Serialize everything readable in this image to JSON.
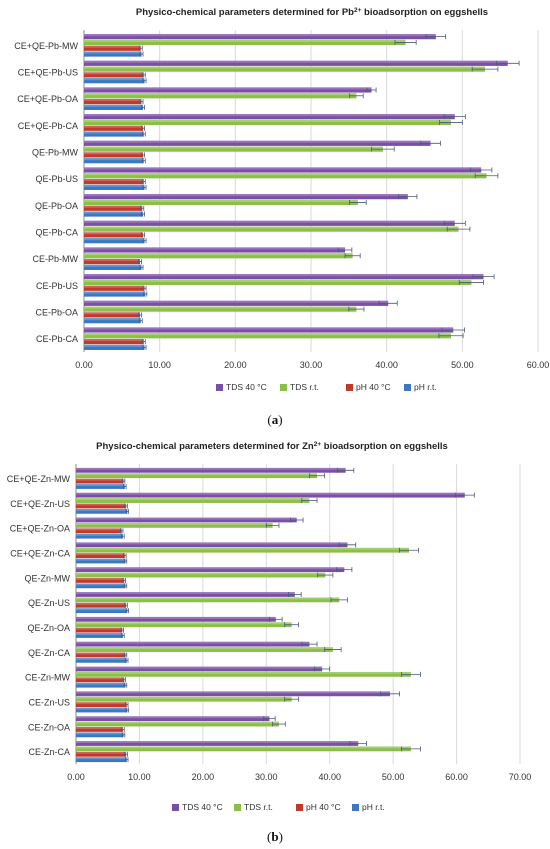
{
  "chart_data": [
    {
      "type": "bar",
      "orientation": "horizontal",
      "title": "Physico-chemical parameters determined for Pb²⁺ bioadsorption on eggshells",
      "title_parts": [
        "Physico-chemical parameters determined for Pb",
        "2+",
        " bioadsorption  on eggshells"
      ],
      "categories": [
        "CE+QE-Pb-MW",
        "CE+QE-Pb-US",
        "CE+QE-Pb-OA",
        "CE+QE-Pb-CA",
        "QE-Pb-MW",
        "QE-Pb-US",
        "QE-Pb-OA",
        "QE-Pb-CA",
        "CE-Pb-MW",
        "CE-Pb-US",
        "CE-Pb-OA",
        "CE-Pb-CA"
      ],
      "xlim": [
        0,
        60
      ],
      "xticks": [
        "0.00",
        "10.00",
        "20.00",
        "30.00",
        "40.00",
        "50.00",
        "60.00"
      ],
      "grid": true,
      "legend": "bottom",
      "error_bars": true,
      "series": [
        {
          "name": "TDS  40 °C",
          "color": "#7b4fa6",
          "values": [
            46.5,
            56.0,
            38.0,
            49.0,
            45.8,
            52.5,
            42.8,
            49.0,
            34.5,
            52.8,
            40.2,
            48.8
          ],
          "errors": [
            1.3,
            1.5,
            0.6,
            1.4,
            1.3,
            1.4,
            1.2,
            1.4,
            0.9,
            1.4,
            1.2,
            1.5
          ]
        },
        {
          "name": "TDS  r.t.",
          "color": "#8cbf4a",
          "values": [
            42.5,
            53.0,
            36.0,
            48.5,
            39.5,
            53.2,
            36.2,
            49.5,
            35.5,
            51.2,
            36.0,
            48.5
          ],
          "errors": [
            1.4,
            1.7,
            0.9,
            1.5,
            1.5,
            1.5,
            1.1,
            1.5,
            1.0,
            1.6,
            1.0,
            1.6
          ]
        },
        {
          "name": "pH 40 °C",
          "color": "#c0392b",
          "values": [
            7.5,
            7.9,
            7.6,
            7.8,
            7.8,
            7.9,
            7.7,
            7.8,
            7.4,
            8.0,
            7.4,
            7.9
          ],
          "errors": [
            0.2,
            0.2,
            0.2,
            0.2,
            0.2,
            0.2,
            0.2,
            0.2,
            0.2,
            0.2,
            0.2,
            0.2
          ]
        },
        {
          "name": "pH r.t.",
          "color": "#3a78c3",
          "values": [
            7.6,
            8.0,
            7.8,
            7.9,
            7.9,
            8.0,
            7.8,
            8.0,
            7.6,
            8.1,
            7.5,
            8.0
          ],
          "errors": [
            0.2,
            0.2,
            0.2,
            0.2,
            0.2,
            0.2,
            0.2,
            0.2,
            0.2,
            0.2,
            0.2,
            0.2
          ]
        }
      ],
      "caption": "(a)"
    },
    {
      "type": "bar",
      "orientation": "horizontal",
      "title": "Physico-chemical parameters determined for Zn²⁺ bioadsorption on eggshells",
      "title_parts": [
        "Physico-chemical parameters determined for Zn",
        "2+",
        " bioadsorption  on eggshells"
      ],
      "categories": [
        "CE+QE-Zn-MW",
        "CE+QE-Zn-US",
        "CE+QE-Zn-OA",
        "CE+QE-Zn-CA",
        "QE-Zn-MW",
        "QE-Zn-US",
        "QE-Zn-OA",
        "QE-Zn-CA",
        "CE-Zn-MW",
        "CE-Zn-US",
        "CE-Zn-OA",
        "CE-Zn-CA"
      ],
      "xlim": [
        0,
        70
      ],
      "xticks": [
        "0.00",
        "10.00",
        "20.00",
        "30.00",
        "40.00",
        "50.00",
        "60.00",
        "70.00"
      ],
      "grid": true,
      "legend": "bottom",
      "error_bars": true,
      "series": [
        {
          "name": "TDS  40 °C",
          "color": "#7b4fa6",
          "values": [
            42.5,
            61.3,
            34.8,
            42.8,
            42.3,
            34.5,
            31.5,
            36.8,
            38.8,
            49.5,
            30.5,
            44.5
          ],
          "errors": [
            1.3,
            1.5,
            1.0,
            1.3,
            1.2,
            1.0,
            1.0,
            1.2,
            1.2,
            1.5,
            0.9,
            1.3
          ]
        },
        {
          "name": "TDS  r.t.",
          "color": "#8cbf4a",
          "values": [
            38.0,
            36.8,
            31.0,
            52.5,
            39.3,
            41.5,
            34.0,
            40.5,
            52.8,
            34.0,
            32.0,
            52.8
          ],
          "errors": [
            1.2,
            1.2,
            1.0,
            1.5,
            1.2,
            1.3,
            1.1,
            1.3,
            1.5,
            1.1,
            1.0,
            1.5
          ]
        },
        {
          "name": "pH 40 °C",
          "color": "#c0392b",
          "values": [
            7.5,
            7.9,
            7.2,
            7.7,
            7.6,
            7.9,
            7.3,
            7.8,
            7.6,
            8.0,
            7.4,
            7.9
          ],
          "errors": [
            0.2,
            0.2,
            0.2,
            0.2,
            0.2,
            0.2,
            0.2,
            0.2,
            0.2,
            0.2,
            0.2,
            0.2
          ]
        },
        {
          "name": "pH r.t.",
          "color": "#3a78c3",
          "values": [
            7.7,
            8.1,
            7.4,
            7.8,
            7.8,
            8.1,
            7.4,
            8.0,
            7.8,
            8.1,
            7.5,
            8.0
          ],
          "errors": [
            0.2,
            0.2,
            0.2,
            0.2,
            0.2,
            0.2,
            0.2,
            0.2,
            0.2,
            0.2,
            0.2,
            0.2
          ]
        }
      ],
      "caption": "(b)"
    }
  ]
}
